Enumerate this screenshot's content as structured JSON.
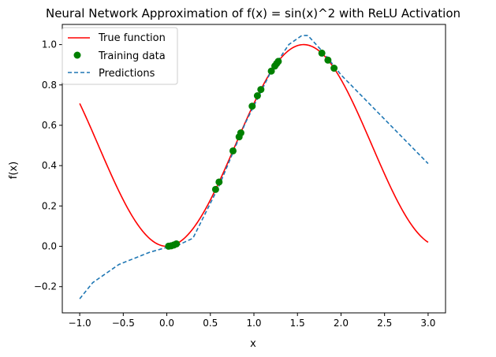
{
  "chart_data": {
    "type": "line",
    "title": "Neural Network Approximation of f(x) = sin(x)^2 with ReLU Activation",
    "xlabel": "x",
    "ylabel": "f(x)",
    "xlim": [
      -1.2,
      3.2
    ],
    "ylim": [
      -0.33,
      1.1
    ],
    "xticks": [
      -1.0,
      -0.5,
      0.0,
      0.5,
      1.0,
      1.5,
      2.0,
      2.5,
      3.0
    ],
    "xtick_labels": [
      "−1.0",
      "−0.5",
      "0.0",
      "0.5",
      "1.0",
      "1.5",
      "2.0",
      "2.5",
      "3.0"
    ],
    "yticks": [
      -0.2,
      0.0,
      0.2,
      0.4,
      0.6,
      0.8,
      1.0
    ],
    "ytick_labels": [
      "−0.2",
      "0.0",
      "0.2",
      "0.4",
      "0.6",
      "0.8",
      "1.0"
    ],
    "grid": false,
    "legend": {
      "placement": "top-left",
      "entries": [
        "True function",
        "Training data",
        "Predictions"
      ]
    },
    "series": [
      {
        "name": "True function",
        "kind": "line",
        "color": "#ff0000",
        "function": "sin(x)^2",
        "x_range": [
          -1.0,
          3.0
        ]
      },
      {
        "name": "Training data",
        "kind": "scatter",
        "color": "#008000",
        "x": [
          0.02,
          0.05,
          0.08,
          0.11,
          0.56,
          0.6,
          0.76,
          0.83,
          0.85,
          0.98,
          1.04,
          1.08,
          1.2,
          1.24,
          1.26,
          1.28,
          1.78,
          1.85,
          1.92
        ],
        "y": [
          0.0004,
          0.0025,
          0.0064,
          0.012,
          0.2821,
          0.3188,
          0.473,
          0.5426,
          0.5625,
          0.6947,
          0.7464,
          0.7774,
          0.8687,
          0.8938,
          0.9056,
          0.9168,
          0.9577,
          0.9231,
          0.8831
        ]
      },
      {
        "name": "Predictions",
        "kind": "dashed-line",
        "color": "#1f77b4",
        "x": [
          -1.0,
          -0.85,
          -0.55,
          -0.2,
          0.0,
          0.15,
          0.3,
          0.6,
          0.9,
          1.2,
          1.4,
          1.55,
          1.62,
          1.8,
          2.0,
          2.5,
          3.0
        ],
        "y": [
          -0.26,
          -0.18,
          -0.09,
          -0.03,
          -0.005,
          0.01,
          0.04,
          0.3,
          0.61,
          0.87,
          1.0,
          1.045,
          1.045,
          0.96,
          0.85,
          0.63,
          0.41
        ]
      }
    ]
  }
}
